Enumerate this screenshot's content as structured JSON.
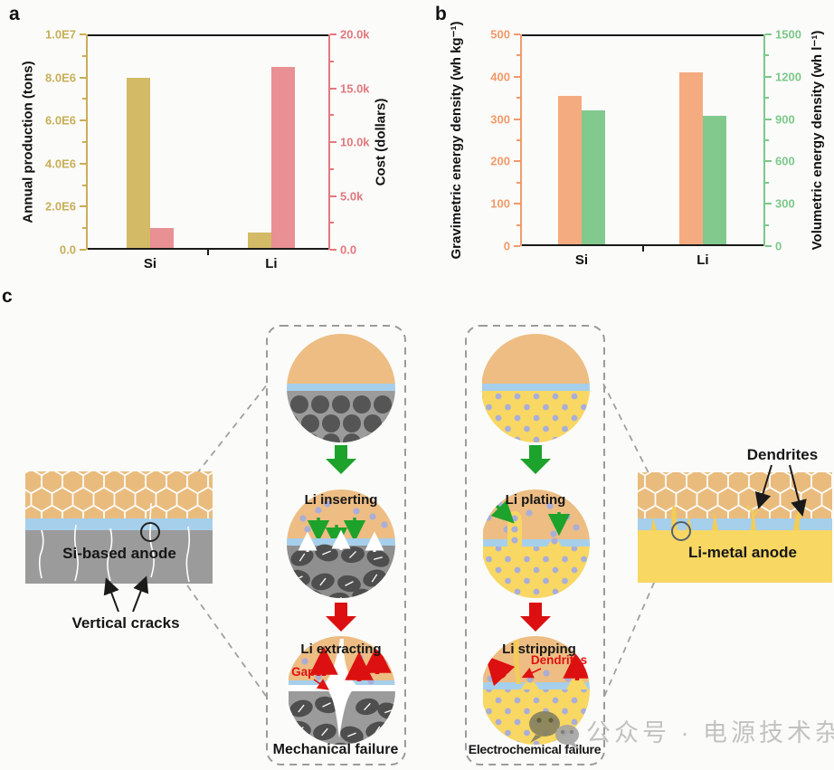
{
  "panels": {
    "a": "a",
    "b": "b",
    "c": "c"
  },
  "chart_data": [
    {
      "type": "bar",
      "panel": "a",
      "categories": [
        "Si",
        "Li"
      ],
      "series": [
        {
          "name": "Annual production (tons)",
          "axis": "left",
          "color": "#d3ba67",
          "values": [
            8000000,
            800000
          ]
        },
        {
          "name": "Cost (dollars)",
          "axis": "right",
          "color": "#e89093",
          "values": [
            2000,
            17000
          ]
        }
      ],
      "left_axis": {
        "label": "Annual production (tons)",
        "color": "#c9ae58",
        "range": [
          0,
          10000000
        ],
        "ticks": [
          "0.0",
          "2.0E6",
          "4.0E6",
          "6.0E6",
          "8.0E6",
          "1.0E7"
        ]
      },
      "right_axis": {
        "label": "Cost (dollars)",
        "color": "#e2787e",
        "range": [
          0,
          20000
        ],
        "ticks": [
          "0.0",
          "5.0k",
          "10.0k",
          "15.0k",
          "20.0k"
        ]
      },
      "grid": false,
      "legend": "none"
    },
    {
      "type": "bar",
      "panel": "b",
      "categories": [
        "Si",
        "Li"
      ],
      "series": [
        {
          "name": "Gravimetric energy density (wh kg⁻¹)",
          "axis": "left",
          "color": "#f5ab80",
          "values": [
            355,
            410
          ]
        },
        {
          "name": "Volumetric energy density (wh l⁻¹)",
          "axis": "right",
          "color": "#82c98e",
          "values": [
            960,
            925
          ]
        }
      ],
      "left_axis": {
        "label": "Gravimetric energy density (wh kg⁻¹)",
        "color": "#f29a6a",
        "range": [
          0,
          500
        ],
        "ticks": [
          "0",
          "100",
          "200",
          "300",
          "400",
          "500"
        ]
      },
      "right_axis": {
        "label": "Volumetric energy density (wh l⁻¹)",
        "color": "#7dc88a",
        "range": [
          0,
          1500
        ],
        "ticks": [
          "0",
          "300",
          "600",
          "900",
          "1200",
          "1500"
        ]
      },
      "grid": false,
      "legend": "none"
    }
  ],
  "diagram": {
    "si_anode_label": "Si-based anode",
    "vertical_cracks_label": "Vertical cracks",
    "mechanical": {
      "step_insert": "Li inserting",
      "step_extract": "Li extracting",
      "gaps_label": "Gaps",
      "caption": "Mechanical failure"
    },
    "electrochemical": {
      "step_plating": "Li plating",
      "step_stripping": "Li stripping",
      "dendrites_label": "Dendrites",
      "caption": "Electrochemical failure"
    },
    "li_anode_label": "Li-metal anode",
    "dendrites_label": "Dendrites",
    "accent_colors": {
      "green_arrow": "#1da22c",
      "red_arrow": "#dc1010",
      "sei_blue": "#a6cfeb",
      "electrolyte_orange": "#edbd83",
      "si_gray": "#9b9b9b",
      "li_yellow": "#f8d763"
    }
  },
  "watermark": {
    "text": "公众号 · 电源技术杂志",
    "icon": "wechat-icon"
  }
}
